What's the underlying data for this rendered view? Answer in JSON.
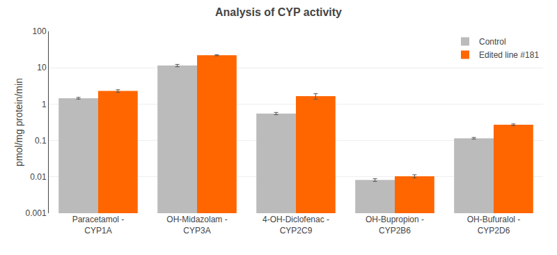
{
  "chart_data": {
    "type": "bar",
    "title": "Analysis of CYP activity",
    "ylabel": "pmol/mg protein/min",
    "categories": [
      "Paracetamol -\nCYP1A",
      "OH-Midazolam -\nCYP3A",
      "4-OH-Diclofenac -\nCYP2C9",
      "OH-Bupropion -\nCYP2B6",
      "OH-Bufuralol -\nCYP2D6"
    ],
    "series": [
      {
        "name": "Control",
        "color": "#BBBBBB",
        "values": [
          1.45,
          11.5,
          0.55,
          0.0082,
          0.115
        ],
        "errors": [
          0.08,
          0.85,
          0.04,
          0.0007,
          0.006
        ]
      },
      {
        "name": "Edited line #181",
        "color": "#FF6600",
        "values": [
          2.3,
          22.0,
          1.65,
          0.0104,
          0.27
        ],
        "errors": [
          0.18,
          0.65,
          0.28,
          0.001,
          0.015
        ]
      }
    ],
    "ylim": [
      0.001,
      100
    ],
    "yticks": [
      0.001,
      0.01,
      0.1,
      1,
      10,
      100
    ],
    "log": "y",
    "grid": true,
    "legend": "upper right"
  }
}
